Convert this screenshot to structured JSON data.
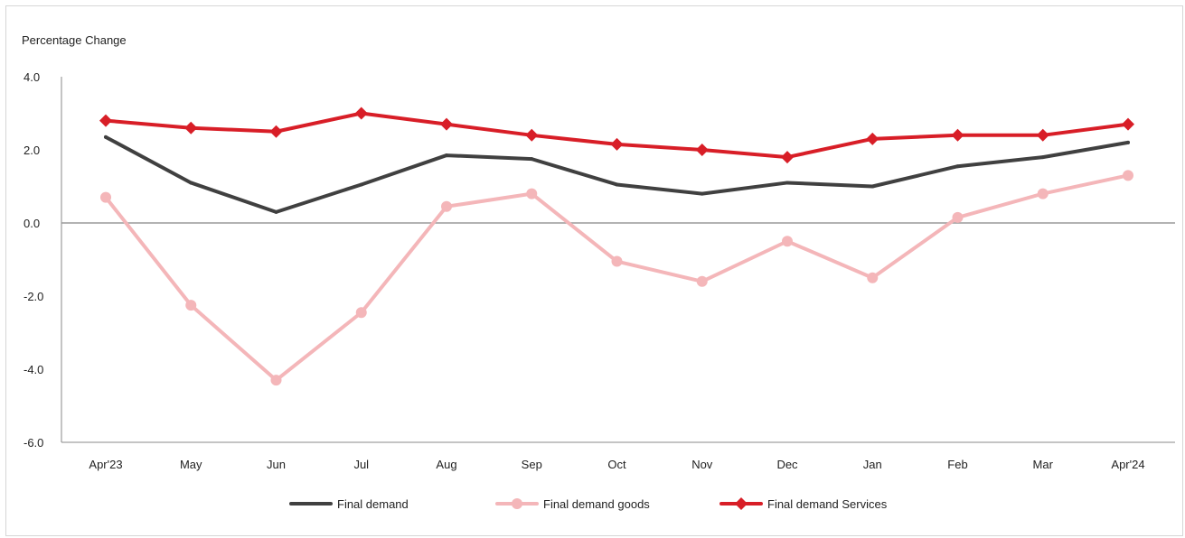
{
  "chart_data": {
    "type": "line",
    "ylabel": "Percentage Change",
    "ylim": [
      -6.0,
      4.0
    ],
    "yticks": [
      "4.0",
      "2.0",
      "0.0",
      "-2.0",
      "-4.0",
      "-6.0"
    ],
    "ytick_values": [
      4,
      2,
      0,
      -2,
      -4,
      -6
    ],
    "categories": [
      "Apr'23",
      "May",
      "Jun",
      "Jul",
      "Aug",
      "Sep",
      "Oct",
      "Nov",
      "Dec",
      "Jan",
      "Feb",
      "Mar",
      "Apr'24"
    ],
    "series": [
      {
        "name": "Final demand",
        "color": "#404040",
        "marker": "none",
        "values": [
          2.35,
          1.1,
          0.3,
          1.05,
          1.85,
          1.75,
          1.05,
          0.8,
          1.1,
          1.0,
          1.55,
          1.8,
          2.2
        ]
      },
      {
        "name": "Final demand goods",
        "color": "#f4b6b9",
        "marker": "circle",
        "values": [
          0.7,
          -2.25,
          -4.3,
          -2.45,
          0.45,
          0.8,
          -1.05,
          -1.6,
          -0.5,
          -1.5,
          0.15,
          0.8,
          1.3
        ]
      },
      {
        "name": "Final demand Services",
        "color": "#d81e27",
        "marker": "diamond",
        "values": [
          2.8,
          2.6,
          2.5,
          3.0,
          2.7,
          2.4,
          2.15,
          2.0,
          1.8,
          2.3,
          2.4,
          2.4,
          2.7
        ]
      }
    ],
    "zero_line_color": "#9a9a9a",
    "grid": false,
    "legend_position": "bottom"
  }
}
